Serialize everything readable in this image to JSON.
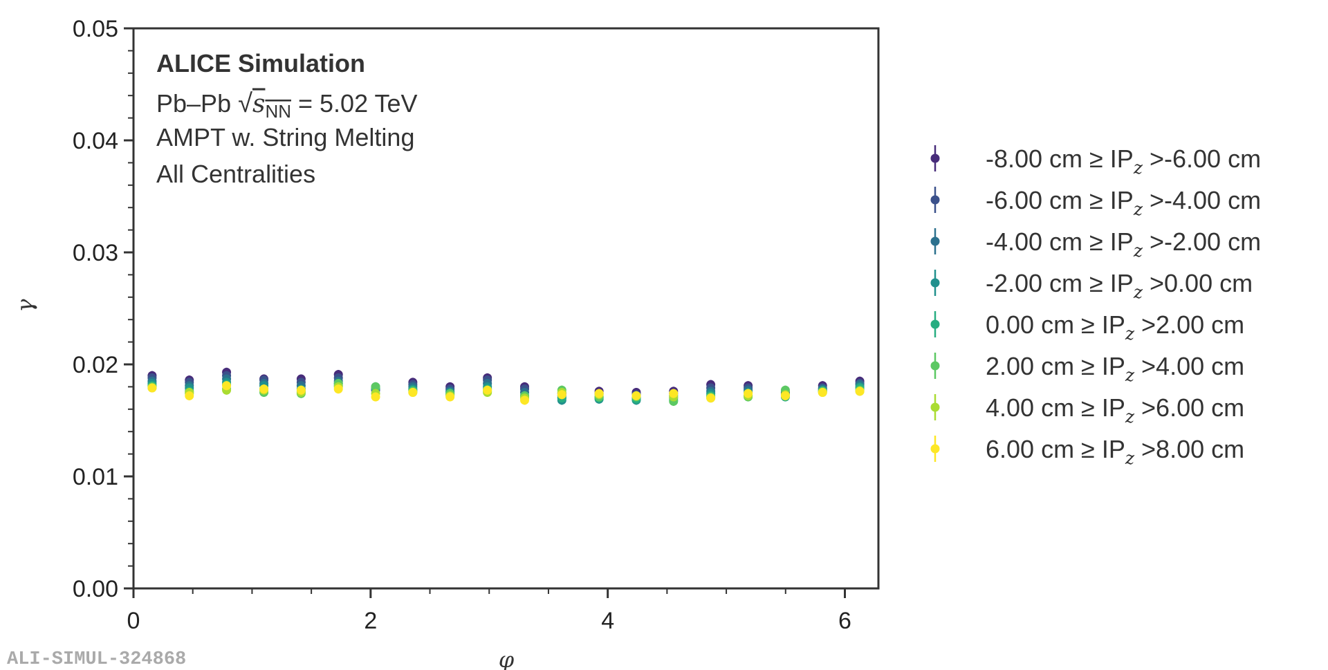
{
  "colors": {
    "axis": "#333333",
    "series": [
      "#472c7a",
      "#3b518b",
      "#2c718e",
      "#21908d",
      "#27ad81",
      "#5cc863",
      "#aadc32",
      "#fde725"
    ]
  },
  "annotations": {
    "title": "ALICE Simulation",
    "system_prefix": "Pb–Pb ",
    "sqrt_symbol": "√",
    "s_var": "s",
    "s_sub": "NN",
    "energy": " = 5.02 TeV",
    "model": "AMPT w. String Melting",
    "centrality": "All Centralities"
  },
  "watermark": "ALI-SIMUL-324868",
  "chart_data": {
    "type": "scatter",
    "title": "",
    "xlabel": "φ",
    "ylabel": "γ",
    "xlim": [
      0,
      6.283
    ],
    "ylim": [
      0,
      0.05
    ],
    "x_ticks": [
      0,
      2,
      4,
      6
    ],
    "x_tick_labels": [
      "0",
      "2",
      "4",
      "6"
    ],
    "x_minor_ticks": [
      0.5,
      1,
      1.5,
      2.5,
      3,
      3.5,
      4.5,
      5,
      5.5
    ],
    "y_ticks": [
      0,
      0.01,
      0.02,
      0.03,
      0.04,
      0.05
    ],
    "y_tick_labels": [
      "0.00",
      "0.01",
      "0.02",
      "0.03",
      "0.04",
      "0.05"
    ],
    "y_minor_step": 0.002,
    "error": 0.0004,
    "legend_position": "outside-right",
    "x": [
      0.157,
      0.471,
      0.785,
      1.1,
      1.414,
      1.728,
      2.042,
      2.356,
      2.67,
      2.985,
      3.299,
      3.613,
      3.927,
      4.241,
      4.555,
      4.869,
      5.184,
      5.498,
      5.812,
      6.126
    ],
    "series": [
      {
        "range": "-8.00 cm ≥ IP",
        "sub": "z",
        "bound": " >-6.00 cm",
        "values": [
          0.019,
          0.0186,
          0.0193,
          0.0187,
          0.0187,
          0.0191,
          0.0179,
          0.0184,
          0.018,
          0.0188,
          0.018,
          0.0174,
          0.0176,
          0.0175,
          0.0176,
          0.0182,
          0.0181,
          0.0175,
          0.0181,
          0.0185
        ]
      },
      {
        "range": "-6.00 cm ≥ IP",
        "sub": "z",
        "bound": " >-4.00 cm",
        "values": [
          0.0188,
          0.0184,
          0.019,
          0.0186,
          0.0184,
          0.0188,
          0.0177,
          0.0182,
          0.0178,
          0.0186,
          0.0178,
          0.0172,
          0.0174,
          0.0173,
          0.0174,
          0.0179,
          0.0179,
          0.0174,
          0.0179,
          0.0183
        ]
      },
      {
        "range": "-4.00 cm ≥ IP",
        "sub": "z",
        "bound": " >-2.00 cm",
        "values": [
          0.0185,
          0.0181,
          0.0187,
          0.0183,
          0.0181,
          0.0185,
          0.0178,
          0.018,
          0.0176,
          0.0183,
          0.0175,
          0.017,
          0.0171,
          0.017,
          0.0172,
          0.0176,
          0.0177,
          0.0173,
          0.0178,
          0.0182
        ]
      },
      {
        "range": "-2.00 cm ≥ IP",
        "sub": "z",
        "bound": " >0.00 cm",
        "values": [
          0.0183,
          0.0179,
          0.0184,
          0.0181,
          0.0178,
          0.0183,
          0.018,
          0.0178,
          0.0175,
          0.018,
          0.0172,
          0.0168,
          0.0169,
          0.0168,
          0.017,
          0.0174,
          0.0175,
          0.0172,
          0.0177,
          0.018
        ]
      },
      {
        "range": "0.00 cm ≥ IP",
        "sub": "z",
        "bound": " >2.00 cm",
        "values": [
          0.0181,
          0.0176,
          0.0182,
          0.0178,
          0.0176,
          0.0181,
          0.0179,
          0.0177,
          0.0173,
          0.0178,
          0.0171,
          0.017,
          0.017,
          0.0169,
          0.0168,
          0.0172,
          0.0172,
          0.0171,
          0.0176,
          0.0179
        ]
      },
      {
        "range": "2.00 cm ≥ IP",
        "sub": "z",
        "bound": " >4.00 cm",
        "values": [
          0.018,
          0.0174,
          0.0178,
          0.0175,
          0.0174,
          0.0183,
          0.018,
          0.0176,
          0.0174,
          0.0176,
          0.0172,
          0.0177,
          0.0171,
          0.0171,
          0.0167,
          0.0171,
          0.0171,
          0.0177,
          0.0176,
          0.0177
        ]
      },
      {
        "range": "4.00 cm ≥ IP",
        "sub": "z",
        "bound": " >6.00 cm",
        "values": [
          0.0179,
          0.0175,
          0.0177,
          0.0177,
          0.0175,
          0.018,
          0.0174,
          0.0175,
          0.0172,
          0.0175,
          0.017,
          0.0175,
          0.0173,
          0.0172,
          0.0171,
          0.017,
          0.0172,
          0.0173,
          0.0175,
          0.0176
        ]
      },
      {
        "range": "6.00 cm ≥ IP",
        "sub": "z",
        "bound": " >8.00 cm",
        "values": [
          0.0179,
          0.0172,
          0.0181,
          0.0178,
          0.0177,
          0.0178,
          0.0171,
          0.0175,
          0.0171,
          0.0177,
          0.0168,
          0.0173,
          0.0174,
          0.0172,
          0.0174,
          0.017,
          0.0174,
          0.0172,
          0.0175,
          0.0176
        ]
      }
    ]
  }
}
